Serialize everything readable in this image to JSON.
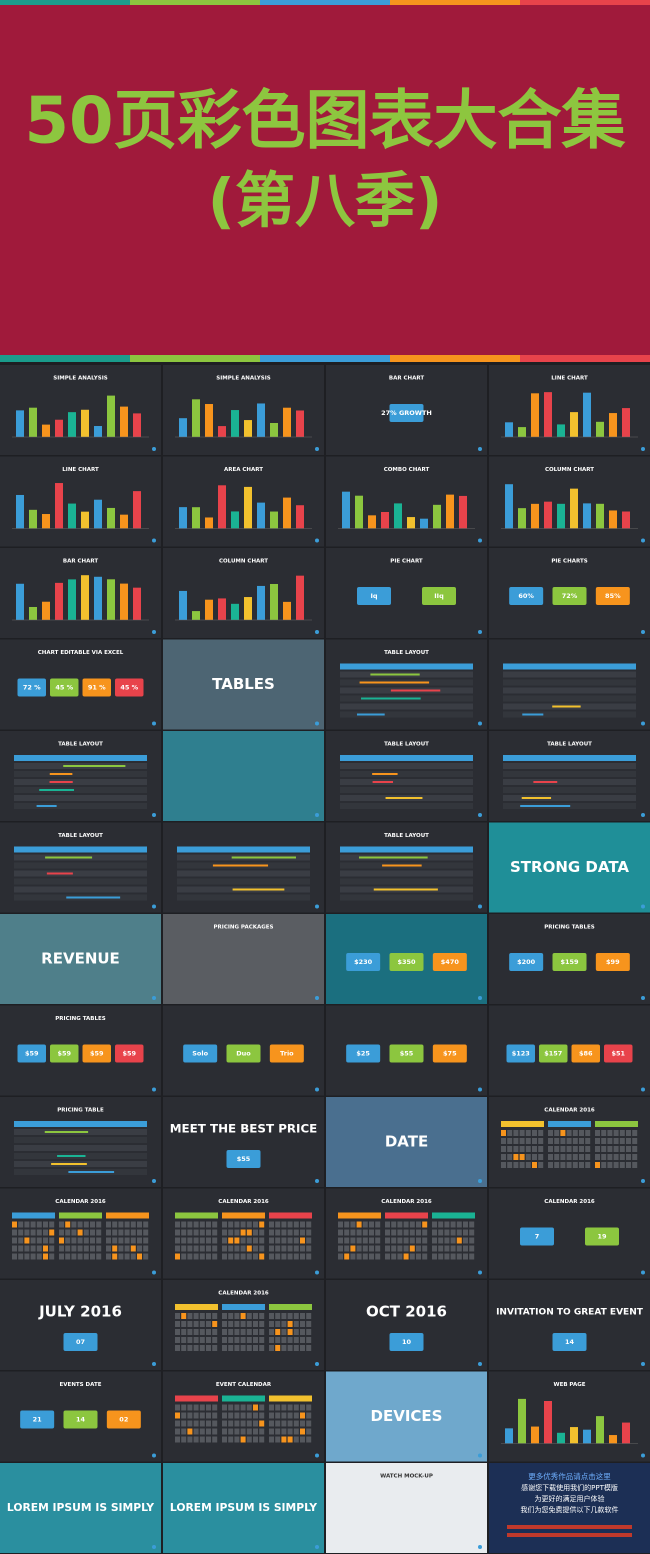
{
  "header": {
    "title": "50页彩色图表大合集",
    "subtitle": "(第八季)"
  },
  "tiles": [
    {
      "title": "SIMPLE ANALYSIS"
    },
    {
      "title": "SIMPLE ANALYSIS"
    },
    {
      "title": "BAR CHART",
      "items": [
        "27% GROWTH"
      ]
    },
    {
      "title": "LINE CHART"
    },
    {
      "title": "LINE CHART"
    },
    {
      "title": "AREA CHART"
    },
    {
      "title": "COMBO CHART"
    },
    {
      "title": "COLUMN CHART"
    },
    {
      "title": "BAR CHART"
    },
    {
      "title": "COLUMN CHART"
    },
    {
      "title": "PIE CHART",
      "items": [
        "Iq",
        "IIq"
      ]
    },
    {
      "title": "PIE CHARTS",
      "items": [
        "60%",
        "72%",
        "85%"
      ]
    },
    {
      "title": "CHART EDITABLE VIA EXCEL",
      "items": [
        "72 %",
        "45 %",
        "91 %",
        "45 %"
      ]
    },
    {
      "headline": "TABLES",
      "bg": "#4d6573"
    },
    {
      "title": "TABLE LAYOUT"
    },
    {},
    {
      "title": "TABLE LAYOUT"
    },
    {
      "bg": "#2f7f8f"
    },
    {
      "title": "TABLE LAYOUT"
    },
    {
      "title": "TABLE LAYOUT"
    },
    {
      "title": "TABLE LAYOUT"
    },
    {},
    {
      "title": "TABLE LAYOUT"
    },
    {
      "headline": "STRONG DATA",
      "bg": "#1f8f98"
    },
    {
      "headline": "REVENUE",
      "bg": "#4f7f8a"
    },
    {
      "title": "PRICING PACKAGES",
      "bg": "#5a5d62"
    },
    {
      "items": [
        "$230",
        "$350",
        "$470"
      ],
      "bg": "#1b6f7f"
    },
    {
      "title": "PRICING TABLES",
      "items": [
        "$200",
        "$159",
        "$99"
      ]
    },
    {
      "title": "PRICING TABLES",
      "items": [
        "$59",
        "$59",
        "$59",
        "$59"
      ]
    },
    {
      "items": [
        "Solo",
        "Duo",
        "Trio"
      ]
    },
    {
      "items": [
        "$25",
        "$55",
        "$75"
      ]
    },
    {
      "items": [
        "$123",
        "$157",
        "$86",
        "$51"
      ]
    },
    {
      "title": "PRICING TABLE"
    },
    {
      "headline": "MEET THE BEST PRICE",
      "items": [
        "$55"
      ]
    },
    {
      "headline": "DATE",
      "bg": "#4a6f8f"
    },
    {
      "title": "CALENDAR 2016"
    },
    {
      "title": "CALENDAR 2016"
    },
    {
      "title": "CALENDAR 2016"
    },
    {
      "title": "CALENDAR 2016"
    },
    {
      "title": "CALENDAR 2016",
      "items": [
        "7",
        "19"
      ]
    },
    {
      "headline": "JULY 2016",
      "items": [
        "07"
      ]
    },
    {
      "title": "CALENDAR 2016"
    },
    {
      "headline": "OCT 2016",
      "items": [
        "10"
      ]
    },
    {
      "headline": "INVITATION TO GREAT EVENT",
      "items": [
        "14"
      ]
    },
    {
      "title": "EVENTS DATE",
      "items": [
        "21",
        "14",
        "02"
      ]
    },
    {
      "title": "EVENT CALENDAR"
    },
    {
      "headline": "DEVICES",
      "bg": "#6fa8cc"
    },
    {
      "title": "WEB PAGE"
    },
    {
      "headline": "LOREM IPSUM IS SIMPLY",
      "bg": "#2a8f9f"
    },
    {
      "headline": "LOREM IPSUM IS SIMPLY",
      "bg": "#2a8f9f"
    },
    {
      "title": "WATCH MOCK-UP",
      "bg": "#e9ecef"
    },
    {
      "bg": "#1c2f55",
      "lines": [
        "更多优秀作品请点击这里",
        "感谢您下载使用我们的PPT模版",
        "为更好的满足用户体验",
        "我们为您免费提供以下几款软件"
      ]
    }
  ]
}
